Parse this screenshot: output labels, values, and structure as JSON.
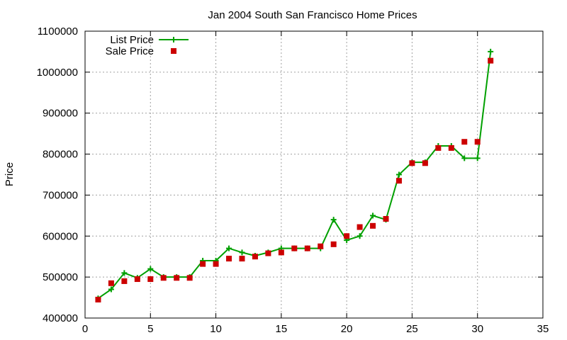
{
  "chart_data": {
    "type": "line",
    "title": "Jan 2004 South San Francisco Home Prices",
    "xlabel": "",
    "ylabel": "Price",
    "xlim": [
      0,
      35
    ],
    "ylim": [
      400000,
      1100000
    ],
    "x_ticks": [
      0,
      5,
      10,
      15,
      20,
      25,
      30,
      35
    ],
    "y_ticks": [
      400000,
      500000,
      600000,
      700000,
      800000,
      900000,
      1000000,
      1100000
    ],
    "grid": true,
    "legend_position": "top-left",
    "series": [
      {
        "name": "List Price",
        "style": "line-with-plus-markers",
        "color": "#00a000",
        "x": [
          1,
          2,
          3,
          4,
          5,
          6,
          7,
          8,
          9,
          10,
          11,
          12,
          13,
          14,
          15,
          16,
          17,
          18,
          19,
          20,
          21,
          22,
          23,
          24,
          25,
          26,
          27,
          28,
          29,
          30,
          31
        ],
        "values": [
          448000,
          470000,
          510000,
          498000,
          520000,
          500000,
          500000,
          500000,
          540000,
          540000,
          570000,
          560000,
          552000,
          560000,
          570000,
          570000,
          570000,
          570000,
          640000,
          590000,
          600000,
          650000,
          640000,
          750000,
          780000,
          780000,
          820000,
          820000,
          790000,
          790000,
          1050000
        ]
      },
      {
        "name": "Sale Price",
        "style": "square-markers",
        "color": "#cc0000",
        "x": [
          1,
          2,
          3,
          4,
          5,
          6,
          7,
          8,
          9,
          10,
          11,
          12,
          13,
          14,
          15,
          16,
          17,
          18,
          19,
          20,
          21,
          22,
          23,
          24,
          25,
          26,
          27,
          28,
          29,
          30,
          31
        ],
        "values": [
          445000,
          485000,
          490000,
          495000,
          495000,
          498000,
          498000,
          498000,
          532000,
          532000,
          545000,
          545000,
          550000,
          558000,
          560000,
          570000,
          570000,
          575000,
          580000,
          600000,
          622000,
          625000,
          642000,
          735000,
          778000,
          778000,
          815000,
          815000,
          830000,
          830000,
          1028000
        ]
      }
    ]
  }
}
